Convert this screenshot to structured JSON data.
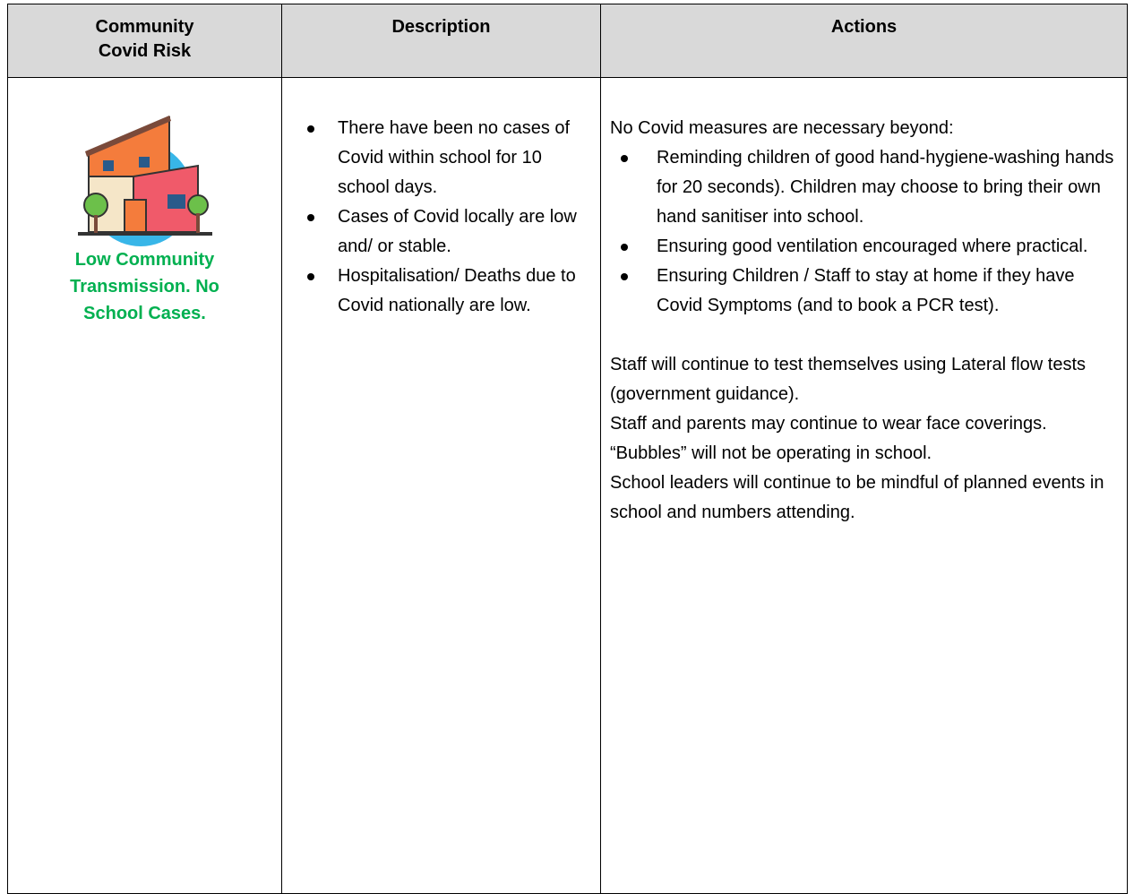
{
  "table": {
    "headers": [
      "Community Covid Risk",
      "Description",
      "Actions"
    ],
    "rows": [
      {
        "risk": "Low Community Transmission. No School Cases.",
        "description": [
          "There have been no cases of Covid within school for 10 school days.",
          "Cases of Covid locally are low and/ or stable.",
          "Hospitalisation/ Deaths due to Covid nationally are low."
        ],
        "actions_intro": "No Covid measures are necessary beyond:",
        "actions": [
          "Reminding children of good hand-hygiene-washing hands for 20 seconds).  Children may choose to bring their own hand sanitiser into school.",
          "Ensuring good ventilation encouraged where practical.",
          "Ensuring Children / Staff to stay at home if they have Covid Symptoms (and to book a PCR test)."
        ],
        "notes": [
          "Staff will continue to test themselves using Lateral flow tests (government guidance).",
          "Staff and parents may continue to wear face coverings.",
          "“Bubbles” will not be operating in school.",
          "School leaders will continue to be mindful of planned events in school and numbers attending."
        ]
      }
    ]
  }
}
